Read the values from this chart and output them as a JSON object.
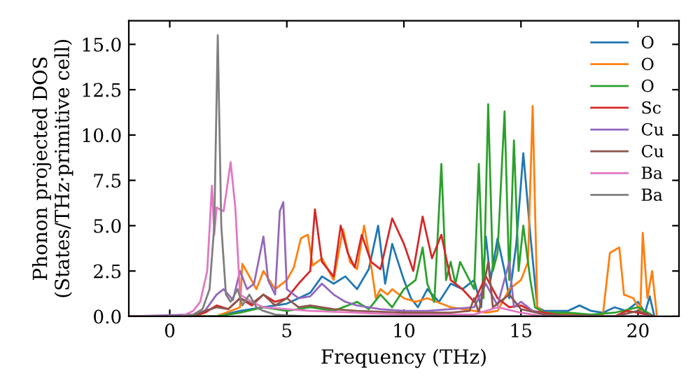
{
  "chart_data": {
    "type": "line",
    "xlabel": "Frequency (THz)",
    "ylabel": "Phonon projected DOS\n(States/THz·primitive cell)",
    "xlim": [
      -1.75,
      21.75
    ],
    "ylim": [
      0,
      16.3
    ],
    "xticks": [
      0,
      5,
      10,
      15,
      20
    ],
    "yticks": [
      {
        "value": 0,
        "label": "0.0"
      },
      {
        "value": 2.5,
        "label": "2.5"
      },
      {
        "value": 5,
        "label": "5.0"
      },
      {
        "value": 7.5,
        "label": "7.5"
      },
      {
        "value": 10,
        "label": "10.0"
      },
      {
        "value": 12.5,
        "label": "12.5"
      },
      {
        "value": 15,
        "label": "15.0"
      }
    ],
    "grid": false,
    "legend": "top right",
    "marker": "none",
    "line_style": "solid",
    "series": [
      {
        "name": "O",
        "color": "#1f77b4",
        "x": [
          -1.75,
          2,
          3,
          4,
          5,
          6,
          6.5,
          7,
          7.5,
          8,
          8.5,
          8.9,
          9.2,
          9.5,
          10,
          10.3,
          10.6,
          11,
          11.5,
          12,
          12.5,
          13,
          13.3,
          13.5,
          13.7,
          14,
          14.3,
          14.5,
          14.8,
          15.1,
          15.4,
          15.7,
          16,
          17,
          17.5,
          18,
          18.5,
          19,
          19.5,
          20,
          20.3,
          20.5,
          20.7
        ],
        "values": [
          0,
          0,
          0.3,
          0.5,
          0.7,
          1.3,
          2.2,
          1.8,
          2.2,
          1.5,
          2.6,
          5.0,
          1.8,
          4.0,
          2.0,
          1.0,
          0.5,
          1.5,
          0.8,
          1.8,
          1.5,
          2.0,
          0.5,
          4.4,
          2.0,
          4.3,
          2.5,
          1.0,
          4.0,
          9.0,
          4.5,
          0.5,
          0.3,
          0.3,
          0.6,
          0.3,
          0.2,
          0.5,
          0.3,
          0.8,
          0.2,
          1.1,
          0
        ]
      },
      {
        "name": "O",
        "color": "#ff7f0e",
        "x": [
          -1.75,
          2,
          3,
          3.1,
          3.4,
          3.7,
          4,
          4.5,
          5,
          5.3,
          5.6,
          5.9,
          6.1,
          6.5,
          7,
          7.4,
          7.7,
          8,
          8.3,
          8.6,
          8.8,
          9,
          9.3,
          9.5,
          10,
          10.5,
          11,
          12,
          13,
          13.5,
          14,
          14.5,
          15,
          15.3,
          15.5,
          15.7,
          16,
          17,
          18.5,
          18.8,
          19.2,
          19.4,
          19.8,
          20.1,
          20.2,
          20.4,
          20.6,
          20.8
        ],
        "values": [
          0,
          0,
          0.5,
          2.9,
          2.2,
          1.5,
          2.5,
          1.5,
          2.0,
          2.7,
          4.3,
          4.5,
          2.8,
          3.2,
          2.0,
          4.8,
          3.0,
          2.6,
          5.0,
          2.8,
          1.0,
          1.5,
          1.2,
          1.5,
          1.0,
          0.8,
          1.0,
          0.5,
          0.3,
          0.2,
          0.3,
          1.5,
          2.0,
          3.0,
          11.6,
          0.5,
          0.2,
          0.1,
          0.1,
          3.5,
          3.8,
          1.2,
          1.0,
          0.3,
          4.6,
          1.0,
          2.5,
          0.1
        ]
      },
      {
        "name": "O",
        "color": "#2ca02c",
        "x": [
          -1.75,
          2,
          3,
          4,
          5,
          6,
          7,
          8,
          8.5,
          9,
          9.5,
          10,
          10.5,
          10.8,
          11,
          11.3,
          11.6,
          11.8,
          12,
          12.2,
          12.4,
          12.8,
          13,
          13.2,
          13.4,
          13.6,
          13.8,
          14,
          14.3,
          14.5,
          14.7,
          14.9,
          15.1,
          15.4,
          15.6,
          16,
          17,
          18,
          19,
          20,
          20.7
        ],
        "values": [
          0,
          0,
          0.2,
          0.5,
          0.3,
          0.5,
          0.3,
          0.8,
          0.4,
          1.2,
          0.5,
          1.5,
          2.0,
          3.8,
          1.8,
          0.8,
          8.4,
          2.0,
          3.0,
          1.8,
          3.0,
          2.0,
          1.5,
          8.4,
          1.0,
          11.7,
          2.5,
          3.5,
          11.3,
          2.0,
          9.7,
          2.5,
          5.0,
          2.0,
          0.5,
          0.2,
          0.2,
          0.1,
          0.2,
          0.5,
          0
        ]
      },
      {
        "name": "Sc",
        "color": "#d62728",
        "x": [
          -1.75,
          1,
          1.5,
          2,
          2.5,
          3,
          3.5,
          4,
          4.5,
          5,
          5.5,
          6,
          6.2,
          6.5,
          7,
          7.3,
          7.6,
          7.9,
          8.2,
          8.6,
          9,
          9.5,
          10,
          10.4,
          10.8,
          11.2,
          11.6,
          12,
          12.5,
          13,
          13.5,
          14,
          14.5,
          15,
          15.5,
          16,
          17,
          19,
          19.5,
          20,
          20.7
        ],
        "values": [
          0,
          0,
          0.2,
          0.6,
          0.4,
          1.0,
          0.6,
          1.2,
          0.8,
          1.0,
          1.8,
          2.5,
          5.9,
          3.0,
          2.2,
          5.0,
          3.5,
          2.7,
          4.5,
          3.0,
          2.6,
          5.4,
          4.0,
          2.5,
          5.5,
          3.2,
          4.5,
          2.0,
          1.5,
          0.8,
          2.2,
          1.0,
          0.5,
          0.6,
          0.3,
          0.2,
          0,
          0,
          0.3,
          0.2,
          0
        ]
      },
      {
        "name": "Cu",
        "color": "#9467bd",
        "x": [
          -1.75,
          1,
          1.5,
          2,
          2.3,
          2.7,
          3,
          3.3,
          3.6,
          4,
          4.2,
          4.5,
          4.7,
          4.85,
          5,
          5.5,
          6,
          6.5,
          7,
          7.5,
          8,
          9,
          10,
          11,
          12,
          13,
          13.5,
          14,
          14.5,
          14.7,
          15,
          15.5,
          16,
          18,
          20.7
        ],
        "values": [
          0,
          0.1,
          0.3,
          1.2,
          1.5,
          0.9,
          2.5,
          1.5,
          1.8,
          4.4,
          2.0,
          1.2,
          5.8,
          6.3,
          1.5,
          1.0,
          1.1,
          1.8,
          1.2,
          0.8,
          0.6,
          0.4,
          0.3,
          0.3,
          0.4,
          0.5,
          1.8,
          0.6,
          3.0,
          0.5,
          0.8,
          0.3,
          0.1,
          0,
          0
        ]
      },
      {
        "name": "Cu",
        "color": "#8c564b",
        "x": [
          -1.75,
          1,
          1.5,
          2,
          2.5,
          3,
          3.5,
          4,
          4.5,
          5,
          5.5,
          6,
          7,
          8,
          10,
          12,
          12.8,
          13,
          13.2,
          13.6,
          13.8,
          14.5,
          15,
          16,
          19,
          20,
          20.7
        ],
        "values": [
          0,
          0,
          0.3,
          0.5,
          0.4,
          1.0,
          0.7,
          1.2,
          0.6,
          1.0,
          0.5,
          0.6,
          0.4,
          0.3,
          0.2,
          0.2,
          0.3,
          1.0,
          0.2,
          3.0,
          0.5,
          1.2,
          0.4,
          0.1,
          0,
          0.3,
          0
        ]
      },
      {
        "name": "Ba",
        "color": "#e377c2",
        "x": [
          -1.75,
          0.5,
          1,
          1.3,
          1.6,
          1.8,
          1.9,
          2,
          2.3,
          2.6,
          2.8,
          3,
          3.5,
          4,
          5,
          6,
          8,
          10,
          13,
          14,
          15,
          16,
          20.7
        ],
        "values": [
          0,
          0,
          0.3,
          0.8,
          2.5,
          7.2,
          4.5,
          6.0,
          5.8,
          8.5,
          6.0,
          1.2,
          0.8,
          0.5,
          0.4,
          0.3,
          0.2,
          0.1,
          0.1,
          0.5,
          0.2,
          0,
          0
        ]
      },
      {
        "name": "Ba",
        "color": "#7f7f7f",
        "x": [
          -1.75,
          0.5,
          1,
          1.4,
          1.7,
          1.9,
          2.05,
          2.2,
          2.4,
          2.6,
          2.9,
          3.1,
          3.4,
          3.7,
          4,
          4.5,
          5,
          6,
          20.7
        ],
        "values": [
          0,
          0,
          0.1,
          0.4,
          1.5,
          5.0,
          15.5,
          5.0,
          1.2,
          0.8,
          1.5,
          0.6,
          1.2,
          0.5,
          0.3,
          0.1,
          0.05,
          0,
          0
        ]
      }
    ]
  }
}
